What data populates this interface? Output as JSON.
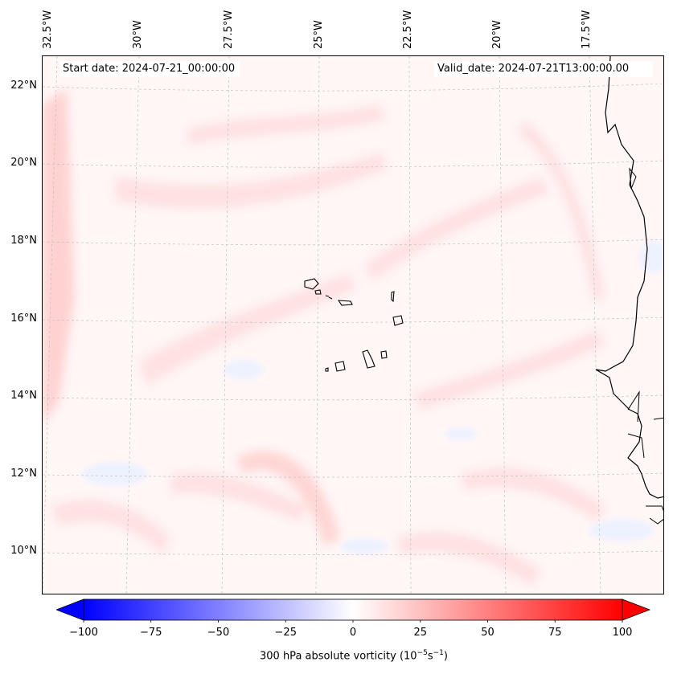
{
  "map": {
    "lon_labels": [
      "32.5°W",
      "30°W",
      "27.5°W",
      "25°W",
      "22.5°W",
      "20°W",
      "17.5°W"
    ],
    "lat_labels": [
      "22°N",
      "20°N",
      "18°N",
      "16°N",
      "14°N",
      "12°N",
      "10°N"
    ],
    "start_date": "Start date: 2024-07-21_00:00:00",
    "valid_date": "Valid_date: 2024-07-21T13:00:00.00",
    "field": "300 hPa absolute vorticity"
  },
  "colorbar": {
    "ticks": [
      "−100",
      "−75",
      "−50",
      "−25",
      "0",
      "25",
      "50",
      "75",
      "100"
    ],
    "range": [
      -100,
      100
    ],
    "title_prefix": "300 hPa absolute vorticity (10",
    "title_exp1": "−5",
    "title_mid": "s",
    "title_exp2": "−1",
    "title_suffix": ")",
    "colors": {
      "negative": "#0000ff",
      "zero": "#ffffff",
      "positive": "#ff0000"
    }
  }
}
